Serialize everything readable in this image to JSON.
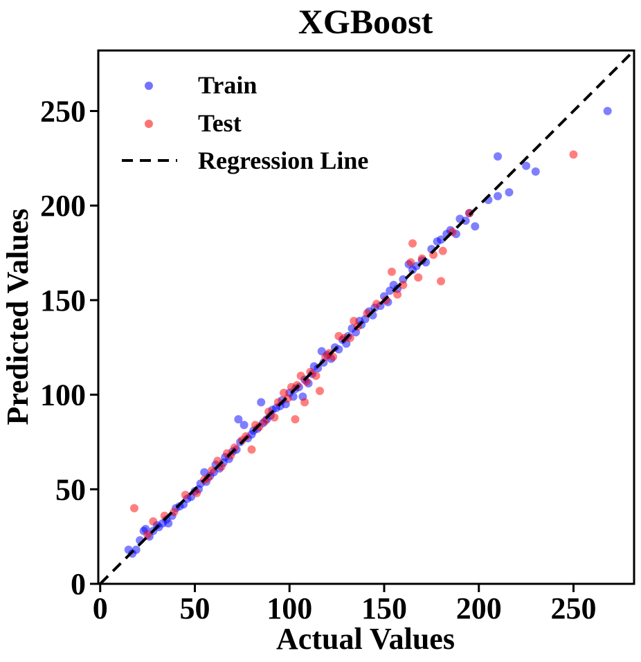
{
  "colors": {
    "train": "#0000ff",
    "test": "#ff0000",
    "line": "#000000"
  },
  "chart_data": {
    "type": "scatter",
    "title": "XGBoost",
    "xlabel": "Actual Values",
    "ylabel": "Predicted Values",
    "xlim": [
      -1,
      282
    ],
    "ylim": [
      0,
      282
    ],
    "xticks": [
      0,
      50,
      100,
      150,
      200,
      250
    ],
    "yticks": [
      0,
      50,
      100,
      150,
      200,
      250
    ],
    "grid": false,
    "legend_position": "top-left",
    "legend": [
      "Train",
      "Test",
      "Regression Line"
    ],
    "regression_line": {
      "name": "Regression Line",
      "style": "dashed",
      "x": [
        0,
        282
      ],
      "y": [
        0,
        282
      ]
    },
    "series": [
      {
        "name": "Train",
        "color": "#0000ff",
        "points": [
          [
            15,
            18
          ],
          [
            17,
            16
          ],
          [
            19,
            18
          ],
          [
            21,
            23
          ],
          [
            23,
            28
          ],
          [
            24,
            29
          ],
          [
            26,
            25
          ],
          [
            28,
            28
          ],
          [
            30,
            31
          ],
          [
            31,
            30
          ],
          [
            33,
            32
          ],
          [
            35,
            34
          ],
          [
            36,
            32
          ],
          [
            38,
            36
          ],
          [
            40,
            40
          ],
          [
            42,
            41
          ],
          [
            44,
            42
          ],
          [
            46,
            45
          ],
          [
            48,
            46
          ],
          [
            50,
            49
          ],
          [
            52,
            50
          ],
          [
            53,
            53
          ],
          [
            55,
            59
          ],
          [
            56,
            54
          ],
          [
            58,
            57
          ],
          [
            60,
            59
          ],
          [
            61,
            63
          ],
          [
            63,
            61
          ],
          [
            65,
            64
          ],
          [
            66,
            67
          ],
          [
            68,
            66
          ],
          [
            70,
            70
          ],
          [
            72,
            71
          ],
          [
            73,
            87
          ],
          [
            74,
            75
          ],
          [
            76,
            84
          ],
          [
            78,
            77
          ],
          [
            80,
            79
          ],
          [
            81,
            81
          ],
          [
            83,
            82
          ],
          [
            85,
            96
          ],
          [
            86,
            85
          ],
          [
            88,
            87
          ],
          [
            90,
            89
          ],
          [
            91,
            92
          ],
          [
            93,
            93
          ],
          [
            95,
            94
          ],
          [
            96,
            97
          ],
          [
            98,
            95
          ],
          [
            100,
            101
          ],
          [
            102,
            99
          ],
          [
            103,
            103
          ],
          [
            105,
            104
          ],
          [
            107,
            99
          ],
          [
            108,
            108
          ],
          [
            110,
            106
          ],
          [
            112,
            111
          ],
          [
            113,
            115
          ],
          [
            115,
            114
          ],
          [
            117,
            123
          ],
          [
            118,
            117
          ],
          [
            120,
            121
          ],
          [
            122,
            119
          ],
          [
            124,
            125
          ],
          [
            126,
            124
          ],
          [
            128,
            129
          ],
          [
            130,
            127
          ],
          [
            131,
            131
          ],
          [
            133,
            135
          ],
          [
            135,
            133
          ],
          [
            137,
            139
          ],
          [
            138,
            137
          ],
          [
            140,
            140
          ],
          [
            142,
            144
          ],
          [
            144,
            142
          ],
          [
            145,
            146
          ],
          [
            148,
            147
          ],
          [
            150,
            152
          ],
          [
            152,
            149
          ],
          [
            153,
            155
          ],
          [
            155,
            158
          ],
          [
            157,
            156
          ],
          [
            160,
            161
          ],
          [
            163,
            169
          ],
          [
            165,
            166
          ],
          [
            167,
            168
          ],
          [
            170,
            171
          ],
          [
            172,
            170
          ],
          [
            175,
            177
          ],
          [
            178,
            181
          ],
          [
            180,
            182
          ],
          [
            183,
            185
          ],
          [
            185,
            187
          ],
          [
            188,
            185
          ],
          [
            190,
            193
          ],
          [
            193,
            192
          ],
          [
            195,
            196
          ],
          [
            198,
            189
          ],
          [
            205,
            203
          ],
          [
            210,
            205
          ],
          [
            210,
            226
          ],
          [
            216,
            207
          ],
          [
            225,
            221
          ],
          [
            230,
            218
          ],
          [
            268,
            250
          ]
        ]
      },
      {
        "name": "Test",
        "color": "#ff0000",
        "points": [
          [
            18,
            40
          ],
          [
            25,
            26
          ],
          [
            28,
            33
          ],
          [
            34,
            36
          ],
          [
            39,
            38
          ],
          [
            45,
            47
          ],
          [
            51,
            48
          ],
          [
            55,
            55
          ],
          [
            57,
            56
          ],
          [
            59,
            60
          ],
          [
            62,
            65
          ],
          [
            64,
            62
          ],
          [
            67,
            69
          ],
          [
            69,
            68
          ],
          [
            71,
            72
          ],
          [
            75,
            76
          ],
          [
            77,
            78
          ],
          [
            80,
            71
          ],
          [
            82,
            84
          ],
          [
            84,
            83
          ],
          [
            87,
            86
          ],
          [
            89,
            91
          ],
          [
            92,
            88
          ],
          [
            94,
            96
          ],
          [
            97,
            101
          ],
          [
            99,
            98
          ],
          [
            101,
            104
          ],
          [
            103,
            87
          ],
          [
            104,
            105
          ],
          [
            106,
            110
          ],
          [
            108,
            96
          ],
          [
            109,
            107
          ],
          [
            111,
            112
          ],
          [
            114,
            110
          ],
          [
            116,
            102
          ],
          [
            119,
            120
          ],
          [
            121,
            122
          ],
          [
            123,
            120
          ],
          [
            126,
            131
          ],
          [
            129,
            130
          ],
          [
            132,
            130
          ],
          [
            134,
            139
          ],
          [
            136,
            136
          ],
          [
            141,
            143
          ],
          [
            146,
            148
          ],
          [
            151,
            150
          ],
          [
            154,
            165
          ],
          [
            157,
            153
          ],
          [
            160,
            158
          ],
          [
            164,
            170
          ],
          [
            165,
            180
          ],
          [
            168,
            162
          ],
          [
            170,
            172
          ],
          [
            176,
            174
          ],
          [
            180,
            160
          ],
          [
            181,
            176
          ],
          [
            186,
            186
          ],
          [
            195,
            196
          ],
          [
            250,
            227
          ]
        ]
      }
    ]
  }
}
